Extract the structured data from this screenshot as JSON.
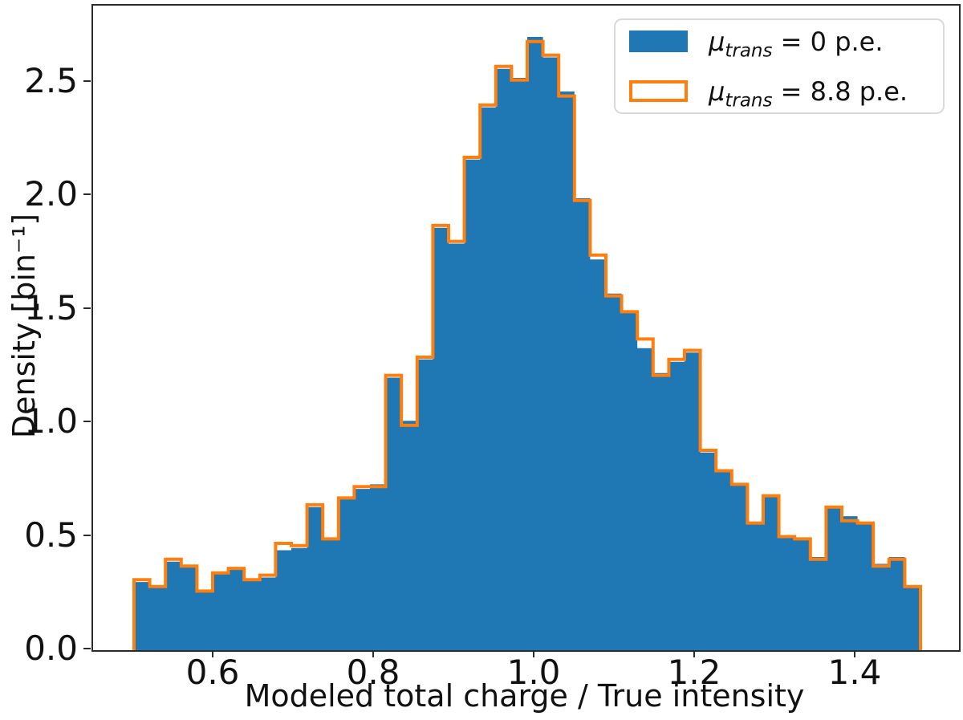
{
  "figure": {
    "background": "#ffffff",
    "spine_color": "#2b2b2b",
    "xlim": [
      0.449,
      1.528
    ],
    "ylim": [
      0,
      2.838
    ]
  },
  "axes": {
    "xlabel": "Modeled total charge / True intensity",
    "ylabel": "Density [bin⁻¹]",
    "x_ticks": {
      "labels": [
        "0.6",
        "0.8",
        "1.0",
        "1.2",
        "1.4"
      ],
      "values": [
        0.6,
        0.8,
        1.0,
        1.2,
        1.4
      ]
    },
    "y_ticks": {
      "labels": [
        "0.0",
        "0.5",
        "1.0",
        "1.5",
        "2.0",
        "2.5"
      ],
      "values": [
        0.0,
        0.5,
        1.0,
        1.5,
        2.0,
        2.5
      ]
    }
  },
  "legend": {
    "entries": [
      {
        "mu": "μ",
        "sub": "trans",
        "rest": " = 0 p.e.",
        "color": "#1f77b4",
        "swatch": "filled"
      },
      {
        "mu": "μ",
        "sub": "trans",
        "rest": " = 8.8 p.e.",
        "color": "#ff7f0e",
        "swatch": "outlined"
      }
    ]
  },
  "chart_data": {
    "type": "bar",
    "subtype": "overlaid-histograms",
    "title": "",
    "xlabel": "Modeled total charge / True intensity",
    "ylabel": "Density [bin⁻¹]",
    "xlim": [
      0.449,
      1.528
    ],
    "ylim": [
      0,
      2.838
    ],
    "grid": false,
    "legend_position": "upper right",
    "bin_start": 0.5,
    "bin_width": 0.0196,
    "n_bins": 50,
    "series": [
      {
        "name": "μ_trans = 0 p.e.",
        "style": "filled",
        "color": "#1f77b4",
        "values": [
          0.3,
          0.28,
          0.39,
          0.37,
          0.26,
          0.34,
          0.36,
          0.31,
          0.32,
          0.44,
          0.45,
          0.63,
          0.49,
          0.67,
          0.71,
          0.73,
          1.2,
          1.01,
          1.28,
          1.86,
          1.79,
          2.16,
          2.39,
          2.56,
          2.52,
          2.7,
          2.61,
          2.46,
          1.99,
          1.72,
          1.57,
          1.49,
          1.33,
          1.22,
          1.27,
          1.31,
          0.87,
          0.79,
          0.73,
          0.56,
          0.68,
          0.5,
          0.49,
          0.41,
          0.63,
          0.59,
          0.56,
          0.38,
          0.41,
          0.28
        ]
      },
      {
        "name": "μ_trans = 8.8 p.e.",
        "style": "step-outline",
        "color": "#ff7f0e",
        "line_width": 4,
        "values": [
          0.31,
          0.28,
          0.4,
          0.37,
          0.26,
          0.34,
          0.36,
          0.31,
          0.33,
          0.47,
          0.46,
          0.64,
          0.49,
          0.67,
          0.72,
          0.72,
          1.21,
          0.99,
          1.29,
          1.87,
          1.8,
          2.17,
          2.4,
          2.57,
          2.51,
          2.68,
          2.62,
          2.44,
          1.98,
          1.74,
          1.56,
          1.49,
          1.37,
          1.21,
          1.28,
          1.32,
          0.88,
          0.79,
          0.73,
          0.56,
          0.68,
          0.5,
          0.49,
          0.4,
          0.63,
          0.57,
          0.56,
          0.37,
          0.4,
          0.28
        ]
      }
    ]
  }
}
